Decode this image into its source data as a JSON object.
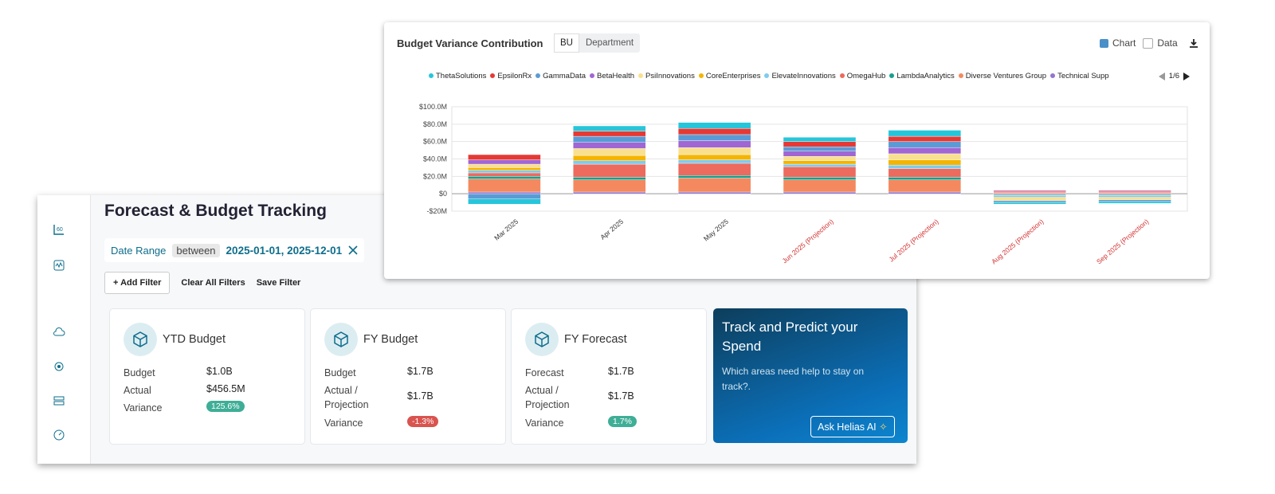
{
  "chart_data": {
    "type": "stacked_bar",
    "title": "Budget Variance Contribution",
    "tabs": [
      "BU",
      "Department"
    ],
    "toggles": [
      "Chart",
      "Data"
    ],
    "legend_page": "1/6",
    "categories": [
      "Mar 2025",
      "Apr 2025",
      "May 2025",
      "Jun 2025 (Projection)",
      "Jul 2025 (Projection)",
      "Aug 2025 (Projection)",
      "Sep 2025 (Projection)"
    ],
    "category_colors": [
      "#333333",
      "#333333",
      "#333333",
      "#d32f2f",
      "#d32f2f",
      "#d32f2f",
      "#d32f2f"
    ],
    "series": [
      {
        "name": "ThetaSolutions",
        "color": "#26c6da",
        "values": [
          -6000000,
          6000000,
          7000000,
          5000000,
          7000000,
          -2000000,
          -2000000
        ]
      },
      {
        "name": "EpsilonRx",
        "color": "#e53935",
        "values": [
          6000000,
          6000000,
          7000000,
          6000000,
          6000000,
          1000000,
          1000000
        ]
      },
      {
        "name": "GammaData",
        "color": "#5b9bd5",
        "values": [
          -6000000,
          7000000,
          7000000,
          5000000,
          7000000,
          -2000000,
          -2000000
        ]
      },
      {
        "name": "BetaHealth",
        "color": "#a066d3",
        "values": [
          5000000,
          7000000,
          8000000,
          6000000,
          7000000,
          1000000,
          1000000
        ]
      },
      {
        "name": "PsiInnovations",
        "color": "#f9e08e",
        "values": [
          4000000,
          8000000,
          8000000,
          5000000,
          7000000,
          -3000000,
          -2000000
        ]
      },
      {
        "name": "CoreEnterprises",
        "color": "#f4b400",
        "values": [
          3000000,
          6000000,
          6000000,
          4000000,
          6000000,
          -1000000,
          -1000000
        ]
      },
      {
        "name": "ElevateInnovations",
        "color": "#7ecbf0",
        "values": [
          3000000,
          4000000,
          4000000,
          3000000,
          4000000,
          -2000000,
          -2000000
        ]
      },
      {
        "name": "OmegaHub",
        "color": "#ec6a5e",
        "values": [
          4000000,
          15000000,
          14000000,
          12000000,
          10000000,
          1000000,
          1000000
        ]
      },
      {
        "name": "LambdaAnalytics",
        "color": "#1a9e8a",
        "values": [
          3000000,
          3000000,
          3000000,
          3000000,
          3000000,
          -1000000,
          -1000000
        ]
      },
      {
        "name": "Diverse Ventures Group",
        "color": "#f4895f",
        "values": [
          15000000,
          14000000,
          16000000,
          14000000,
          14000000,
          1000000,
          1000000
        ]
      },
      {
        "name": "Technical Supp",
        "color": "#9575cd",
        "values": [
          2000000,
          2000000,
          2000000,
          2000000,
          2000000,
          -1000000,
          -1000000
        ]
      }
    ],
    "ylim": [
      -20000000,
      100000000
    ],
    "yticks": [
      {
        "value": -20000000,
        "label": "-$20M"
      },
      {
        "value": 0,
        "label": "$0"
      },
      {
        "value": 20000000,
        "label": "$20.0M"
      },
      {
        "value": 40000000,
        "label": "$40.0M"
      },
      {
        "value": 60000000,
        "label": "$60.0M"
      },
      {
        "value": 80000000,
        "label": "$80.0M"
      },
      {
        "value": 100000000,
        "label": "$100.0M"
      }
    ],
    "grid": true
  },
  "dashboard": {
    "title": "Forecast & Budget Tracking",
    "filter": {
      "field": "Date Range",
      "operator": "between",
      "value": "2025-01-01, 2025-12-01"
    },
    "buttons": [
      "+ Add Filter",
      "Clear All Filters",
      "Save Filter"
    ],
    "cards": [
      {
        "title": "YTD Budget",
        "rows": [
          {
            "label": "Budget",
            "value": "$1.0B"
          },
          {
            "label": "Actual",
            "value": "$456.5M"
          },
          {
            "label": "Variance",
            "value": "125.6%"
          }
        ],
        "badge_color": "#3fae96"
      },
      {
        "title": "FY Budget",
        "rows": [
          {
            "label": "Budget",
            "value": "$1.7B"
          },
          {
            "label": "Actual / Projection",
            "value": "$1.7B"
          },
          {
            "label": "Variance",
            "value": "-1.3%"
          }
        ],
        "badge_color": "#d9534f"
      },
      {
        "title": "FY Forecast",
        "rows": [
          {
            "label": "Forecast",
            "value": "$1.7B"
          },
          {
            "label": "Actual / Projection",
            "value": "$1.7B"
          },
          {
            "label": "Variance",
            "value": "1.7%"
          }
        ],
        "badge_color": "#3fae96"
      }
    ],
    "promo": {
      "title": "Track and Predict your Spend",
      "text": "Which areas need help to stay on track?.",
      "button": "Ask Helias AI"
    }
  }
}
